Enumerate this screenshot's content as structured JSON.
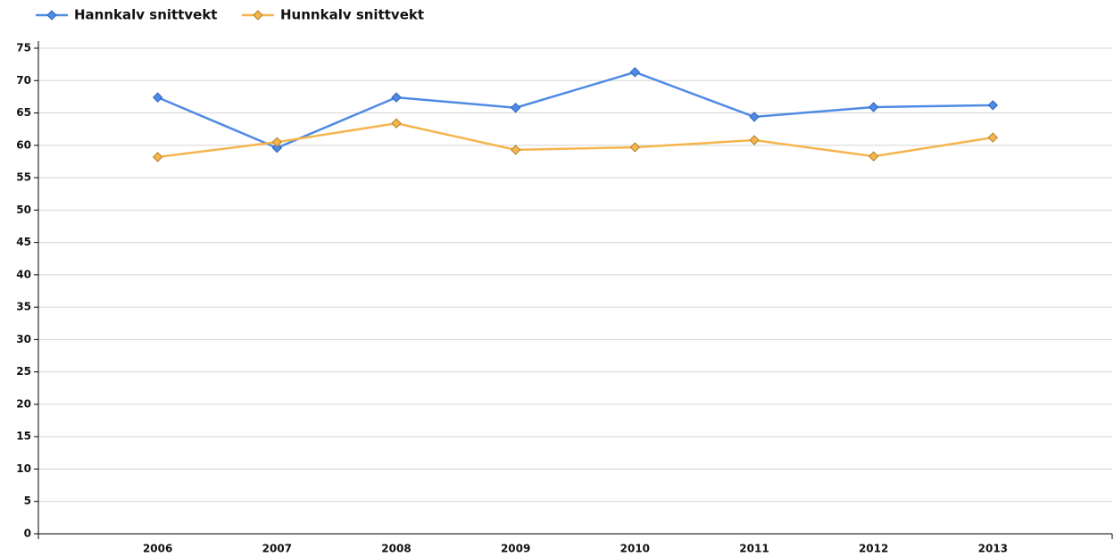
{
  "chart_data": {
    "type": "line",
    "categories": [
      "2006",
      "2007",
      "2008",
      "2009",
      "2010",
      "2011",
      "2012",
      "2013"
    ],
    "series": [
      {
        "name": "Hannkalv snittvekt",
        "color": "#4f8ae3",
        "values": [
          67.4,
          59.6,
          67.4,
          65.8,
          71.3,
          64.4,
          65.9,
          66.2
        ]
      },
      {
        "name": "Hunnkalv snittvekt",
        "color": "#f5b54c",
        "values": [
          58.2,
          60.5,
          63.4,
          59.3,
          59.7,
          60.8,
          58.3,
          61.2
        ]
      }
    ],
    "ylim": [
      0,
      75
    ],
    "yticks": [
      0,
      5,
      10,
      15,
      20,
      25,
      30,
      35,
      40,
      45,
      50,
      55,
      60,
      65,
      70,
      75
    ],
    "grid": true,
    "legend": "top-left"
  }
}
